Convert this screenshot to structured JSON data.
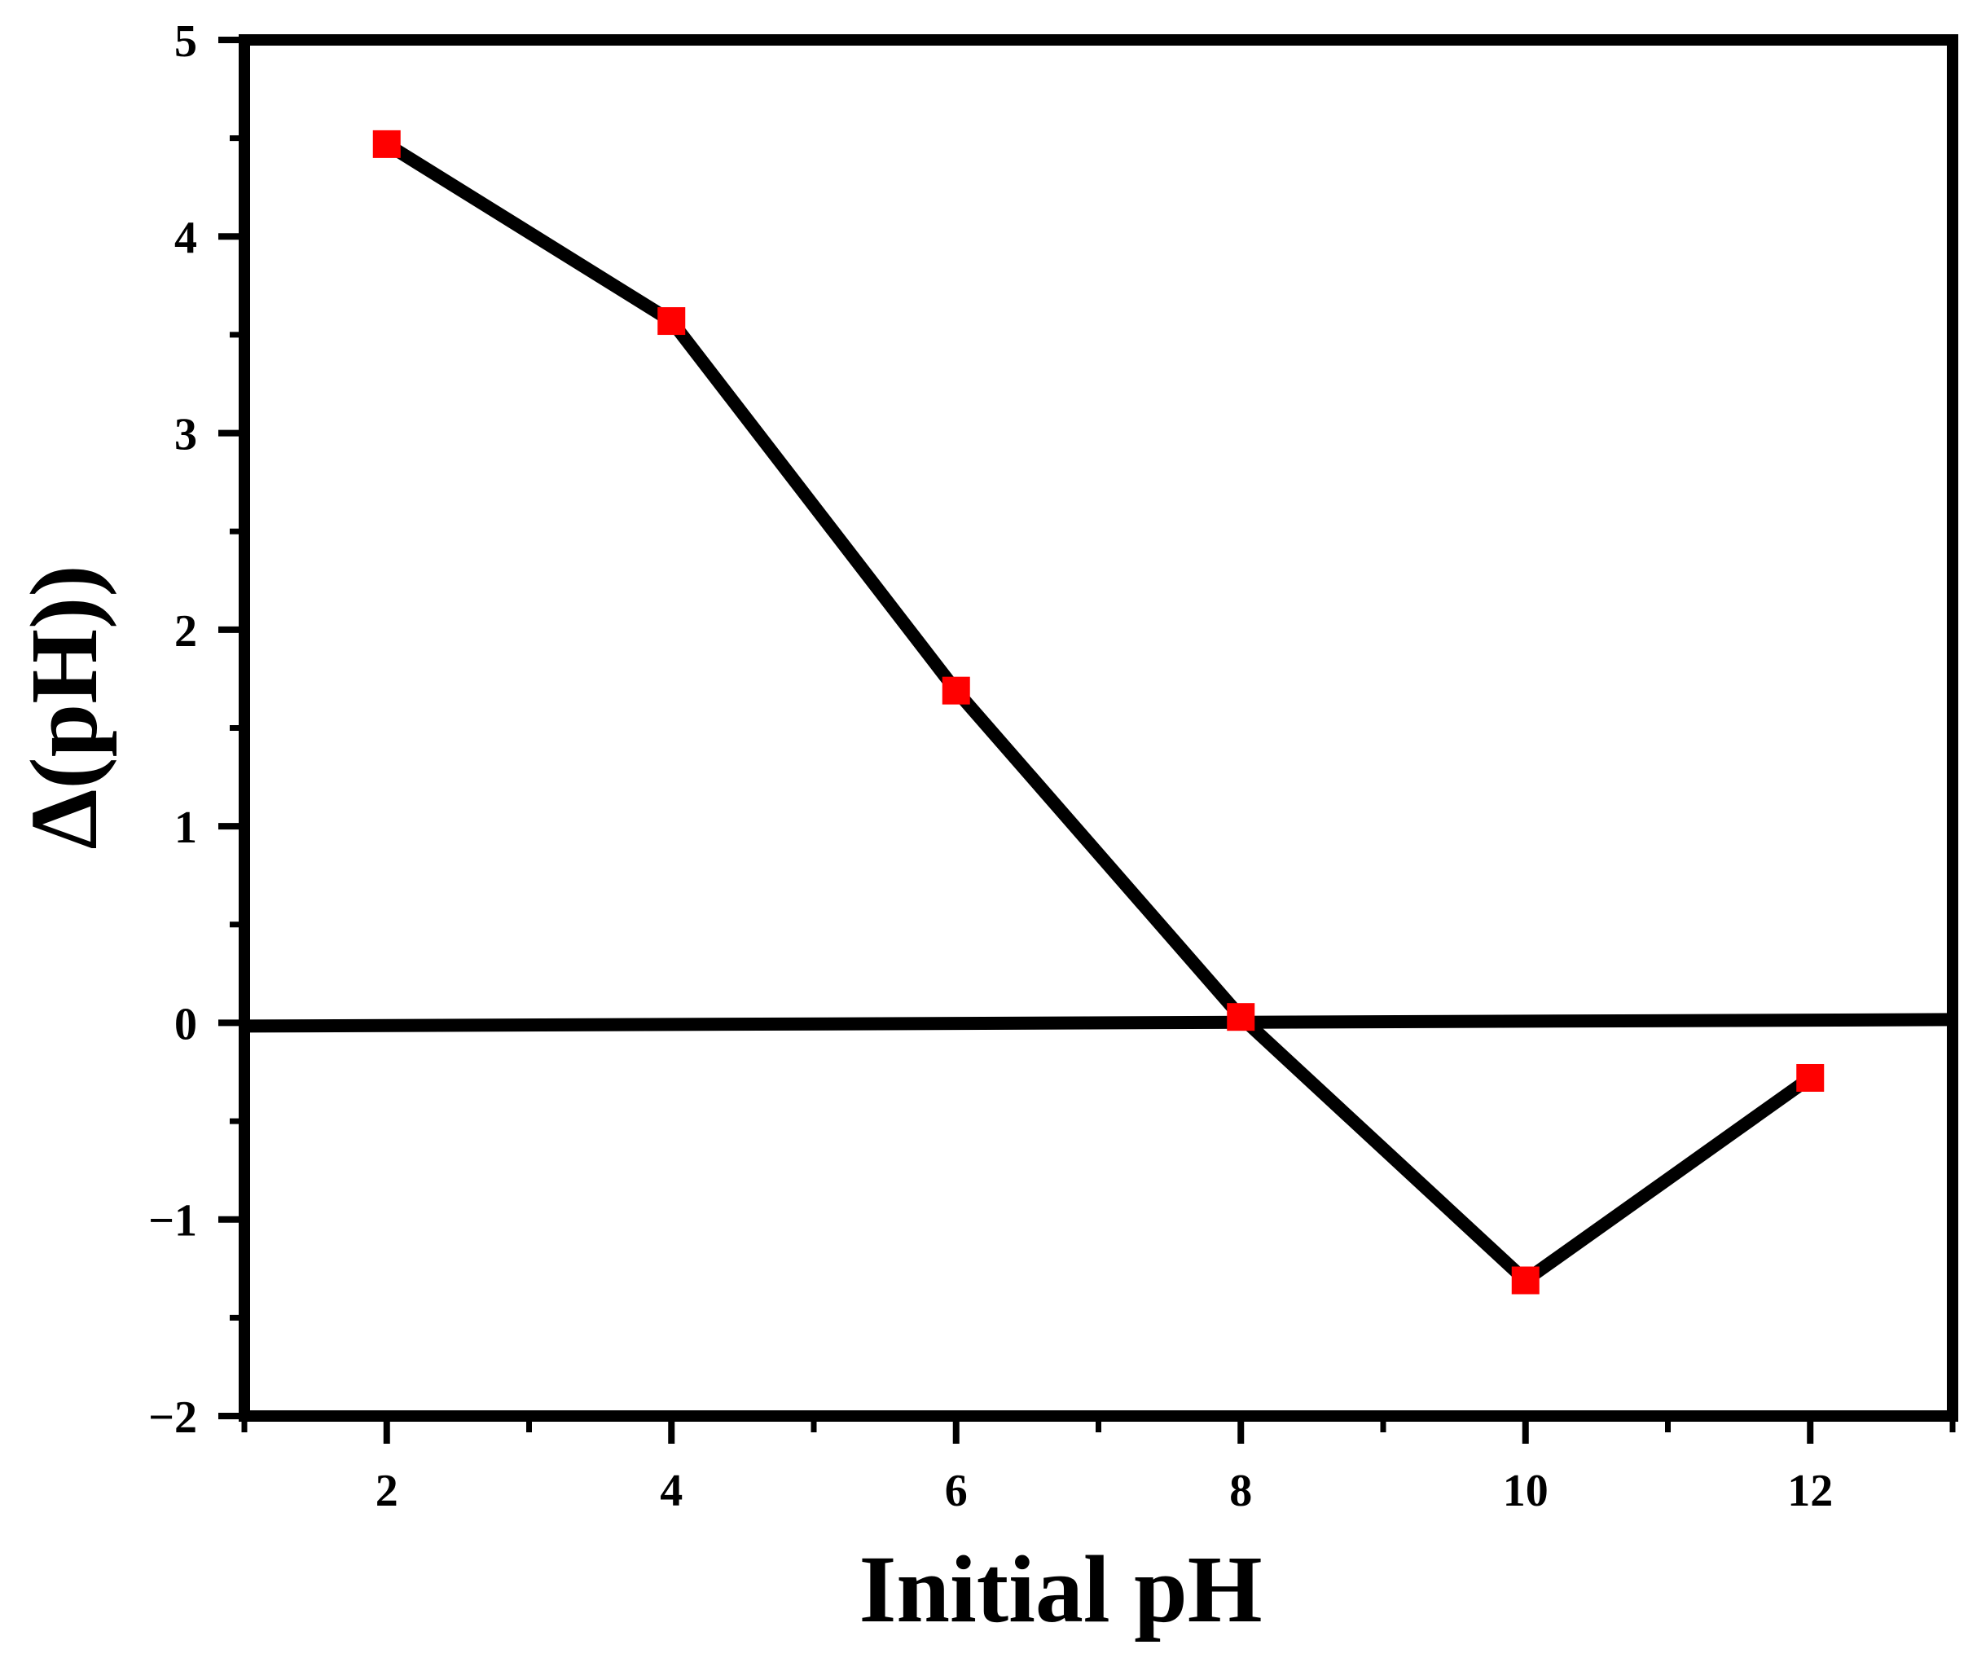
{
  "chart_data": {
    "type": "line",
    "title": "",
    "xlabel": "Initial pH",
    "ylabel": "Δ(pH))",
    "xlim": [
      1,
      13
    ],
    "ylim": [
      -2,
      5
    ],
    "x_ticks": [
      2,
      4,
      6,
      8,
      10,
      12
    ],
    "x_tick_labels": [
      "2",
      "4",
      "6",
      "8",
      "10",
      "12"
    ],
    "y_ticks": [
      -2,
      -1,
      0,
      1,
      2,
      3,
      4,
      5
    ],
    "y_tick_labels": [
      "−2",
      "−1",
      "0",
      "1",
      "2",
      "3",
      "4",
      "5"
    ],
    "grid": false,
    "legend": "none",
    "series": [
      {
        "x": [
          2,
          4,
          6,
          8,
          10,
          12
        ],
        "y": [
          4.47,
          3.57,
          1.69,
          0.03,
          -1.31,
          -0.28
        ],
        "line_color": "#000000",
        "marker": "square",
        "marker_color": "#ff0000"
      }
    ],
    "reference_line": {
      "y": 0,
      "color": "#000000"
    }
  }
}
